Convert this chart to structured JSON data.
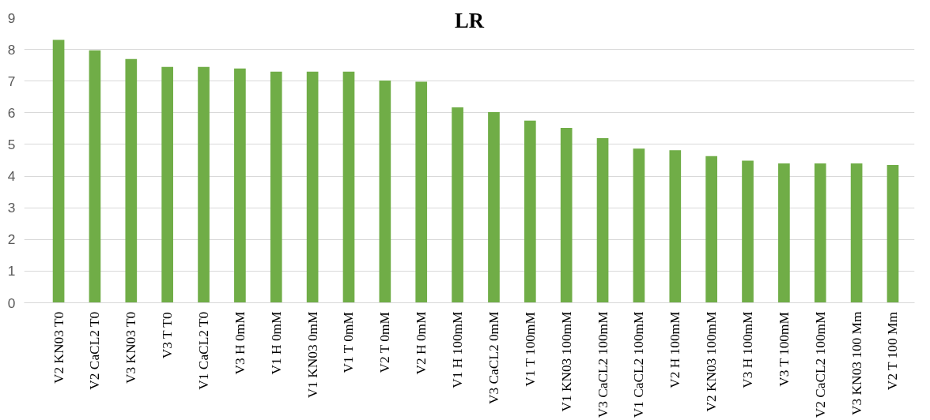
{
  "chart_data": {
    "type": "bar",
    "title": "LR",
    "categories": [
      "V2 KN03 T0",
      "V2 CaCL2 T0",
      "V3 KN03 T0",
      "V3 T T0",
      "V1 CaCL2 T0",
      "V3 H 0mM",
      "V1 H 0mM",
      "V1 KN03 0mM",
      "V1 T 0mM",
      "V2 T 0mM",
      "V2 H 0mM",
      "V1 H 100mM",
      "V3 CaCL2 0mM",
      "V1 T 100mM",
      "V1 KN03 100mM",
      "V3 CaCL2 100mM",
      "V1 CaCL2 100mM",
      "V2 H 100mM",
      "V2 KN03 100mM",
      "V3 H 100mM",
      "V3 T 100mM",
      "V2 CaCL2 100mM",
      "V3 KN03 100 Mm",
      "V2 T 100 Mm"
    ],
    "values": [
      8.3,
      7.97,
      7.7,
      7.45,
      7.45,
      7.4,
      7.3,
      7.3,
      7.3,
      7.02,
      6.98,
      6.17,
      6.02,
      5.75,
      5.52,
      5.2,
      4.87,
      4.82,
      4.63,
      4.49,
      4.4,
      4.4,
      4.4,
      4.35
    ],
    "color": "#70ad47",
    "ylim": [
      0,
      9
    ],
    "yticks": [
      0,
      1,
      2,
      3,
      4,
      5,
      6,
      7,
      8,
      9
    ],
    "grid": "y"
  }
}
